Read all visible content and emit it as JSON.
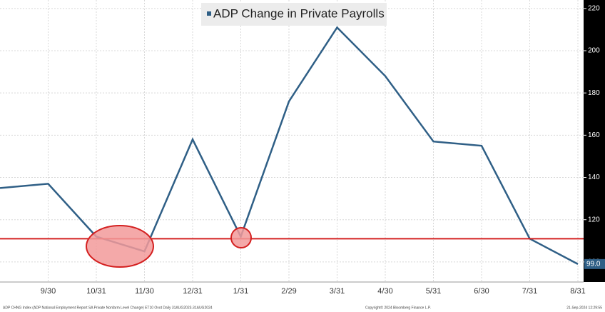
{
  "chart_data": {
    "type": "line",
    "title": "ADP Change in Private Payrolls",
    "categories": [
      null,
      "9/30",
      "10/31",
      "11/30",
      "12/31",
      "1/31",
      "2/29",
      "3/31",
      "4/30",
      "5/31",
      "6/30",
      "7/31",
      "8/31"
    ],
    "series": [
      {
        "name": "ADP Change in Private Payrolls",
        "color": "#2f5f86",
        "values": [
          135,
          137,
          112,
          105,
          158,
          112,
          176,
          211,
          188,
          157,
          155,
          111,
          99
        ],
        "value_labels": [
          null,
          null,
          null,
          null,
          null,
          null,
          null,
          null,
          null,
          null,
          null,
          null,
          "99.0"
        ]
      }
    ],
    "ylim": [
      90.5,
      224
    ],
    "yticks": [
      100,
      120,
      140,
      160,
      180,
      200,
      220
    ],
    "grid": true,
    "reference_line": {
      "value": 111,
      "color": "#d42020"
    },
    "footer": {
      "source": "ADP CHNG Index (ADP National Employment Report SA Private Nonfarm Level Change) ET10 Ovot Daily 31AUG2023-31AUG2024",
      "copyright": "Copyright© 2024 Bloomberg Finance L.P.",
      "timestamp": "21-Sep-2024 12:29:55"
    }
  }
}
